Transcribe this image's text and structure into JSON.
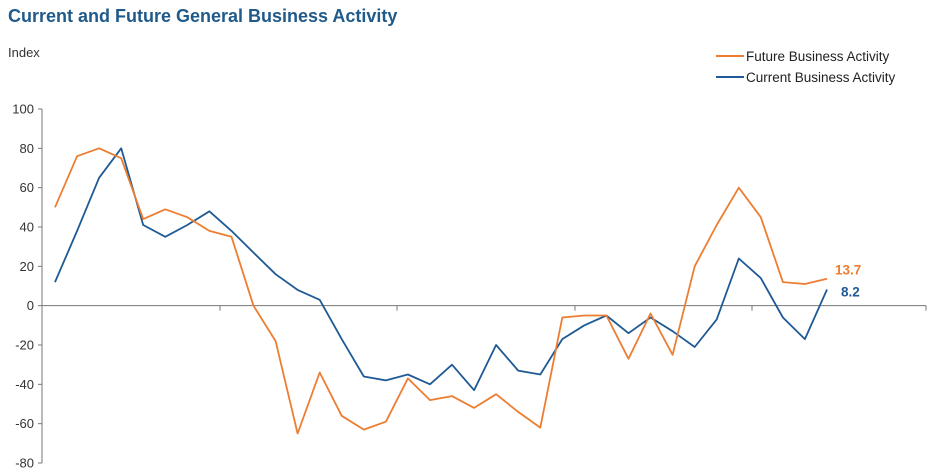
{
  "chart_data": {
    "type": "line",
    "title": "Current and Future General Business Activity",
    "ylabel": "Index",
    "ylim": [
      -80,
      100
    ],
    "yticks": [
      100,
      80,
      60,
      40,
      20,
      0,
      -20,
      -40,
      -60,
      -80
    ],
    "grid": false,
    "legend_placement": "top-right",
    "series": [
      {
        "name": "Future Business Activity",
        "color": "#ed7d31",
        "end_label": "13.7",
        "values": [
          50,
          76,
          80,
          75,
          44,
          49,
          45,
          38,
          35,
          0,
          -18,
          -65,
          -34,
          -56,
          -63,
          -59,
          -37,
          -48,
          -46,
          -52,
          -45,
          -54,
          -62,
          -6,
          -5,
          -5,
          -27,
          -4,
          -25,
          20,
          41,
          60,
          45,
          12,
          11,
          13.7
        ]
      },
      {
        "name": "Current Business Activity",
        "color": "#1f5a95",
        "end_label": "8.2",
        "values": [
          12,
          38,
          65,
          80,
          41,
          35,
          41,
          48,
          38,
          27,
          16,
          8,
          3,
          -17,
          -36,
          -38,
          -35,
          -40,
          -30,
          -43,
          -20,
          -33,
          -35,
          -17,
          -10,
          -5,
          -14,
          -6,
          -13,
          -21,
          -7,
          24,
          14,
          -6,
          -17,
          8.2
        ]
      }
    ]
  }
}
